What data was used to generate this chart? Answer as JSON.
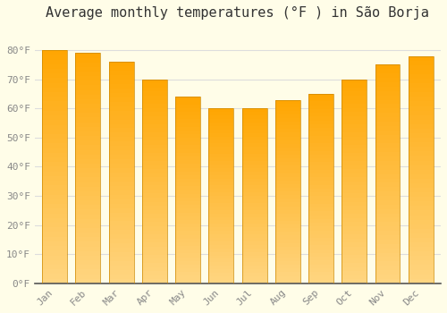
{
  "title": "Average monthly temperatures (°F ) in São Borja",
  "months": [
    "Jan",
    "Feb",
    "Mar",
    "Apr",
    "May",
    "Jun",
    "Jul",
    "Aug",
    "Sep",
    "Oct",
    "Nov",
    "Dec"
  ],
  "values": [
    80,
    79,
    76,
    70,
    64,
    60,
    60,
    63,
    65,
    70,
    75,
    78
  ],
  "bar_color_top": "#FFA500",
  "bar_color_bottom": "#FFD580",
  "bar_edge_color": "#CC8800",
  "background_color": "#FFFDE8",
  "grid_color": "#DDDDDD",
  "ylim": [
    0,
    88
  ],
  "ytick_values": [
    0,
    10,
    20,
    30,
    40,
    50,
    60,
    70,
    80
  ],
  "title_fontsize": 11,
  "tick_fontsize": 8,
  "font_family": "monospace"
}
